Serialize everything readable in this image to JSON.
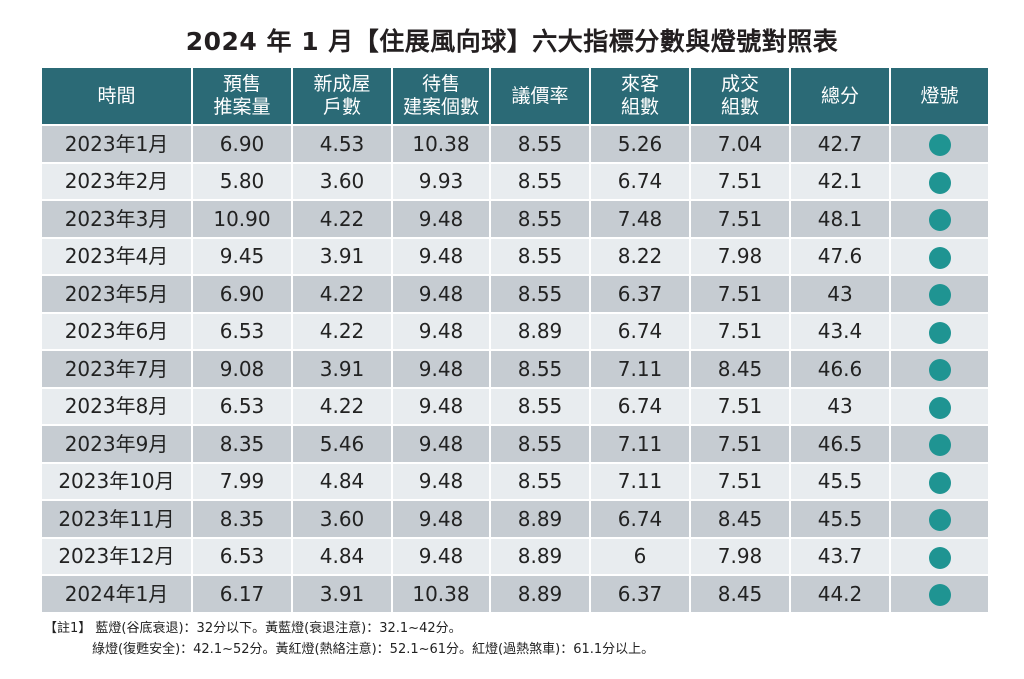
{
  "title": "2024 年 1 月【住展風向球】六大指標分數與燈號對照表",
  "colors": {
    "header_bg": "#2b6a76",
    "row_odd": "#c6ccd2",
    "row_even": "#e8ecef",
    "signal_green": "#1f9492"
  },
  "table": {
    "headers": [
      [
        "時間"
      ],
      [
        "預售",
        "推案量"
      ],
      [
        "新成屋",
        "戶數"
      ],
      [
        "待售",
        "建案個數"
      ],
      [
        "議價率"
      ],
      [
        "來客",
        "組數"
      ],
      [
        "成交",
        "組數"
      ],
      [
        "總分"
      ],
      [
        "燈號"
      ]
    ],
    "rows": [
      [
        "2023年1月",
        "6.90",
        "4.53",
        "10.38",
        "8.55",
        "5.26",
        "7.04",
        "42.7",
        "green"
      ],
      [
        "2023年2月",
        "5.80",
        "3.60",
        "9.93",
        "8.55",
        "6.74",
        "7.51",
        "42.1",
        "green"
      ],
      [
        "2023年3月",
        "10.90",
        "4.22",
        "9.48",
        "8.55",
        "7.48",
        "7.51",
        "48.1",
        "green"
      ],
      [
        "2023年4月",
        "9.45",
        "3.91",
        "9.48",
        "8.55",
        "8.22",
        "7.98",
        "47.6",
        "green"
      ],
      [
        "2023年5月",
        "6.90",
        "4.22",
        "9.48",
        "8.55",
        "6.37",
        "7.51",
        "43",
        "green"
      ],
      [
        "2023年6月",
        "6.53",
        "4.22",
        "9.48",
        "8.89",
        "6.74",
        "7.51",
        "43.4",
        "green"
      ],
      [
        "2023年7月",
        "9.08",
        "3.91",
        "9.48",
        "8.55",
        "7.11",
        "8.45",
        "46.6",
        "green"
      ],
      [
        "2023年8月",
        "6.53",
        "4.22",
        "9.48",
        "8.55",
        "6.74",
        "7.51",
        "43",
        "green"
      ],
      [
        "2023年9月",
        "8.35",
        "5.46",
        "9.48",
        "8.55",
        "7.11",
        "7.51",
        "46.5",
        "green"
      ],
      [
        "2023年10月",
        "7.99",
        "4.84",
        "9.48",
        "8.55",
        "7.11",
        "7.51",
        "45.5",
        "green"
      ],
      [
        "2023年11月",
        "8.35",
        "3.60",
        "9.48",
        "8.89",
        "6.74",
        "8.45",
        "45.5",
        "green"
      ],
      [
        "2023年12月",
        "6.53",
        "4.84",
        "9.48",
        "8.89",
        "6",
        "7.98",
        "43.7",
        "green"
      ],
      [
        "2024年1月",
        "6.17",
        "3.91",
        "10.38",
        "8.89",
        "6.37",
        "8.45",
        "44.2",
        "green"
      ]
    ]
  },
  "notes": {
    "line1": "【註1】 藍燈(谷底衰退)：32分以下。黃藍燈(衰退注意)：32.1~42分。",
    "line2": "綠燈(復甦安全)：42.1~52分。黃紅燈(熱絡注意)：52.1~61分。紅燈(過熱煞車)：61.1分以上。"
  }
}
